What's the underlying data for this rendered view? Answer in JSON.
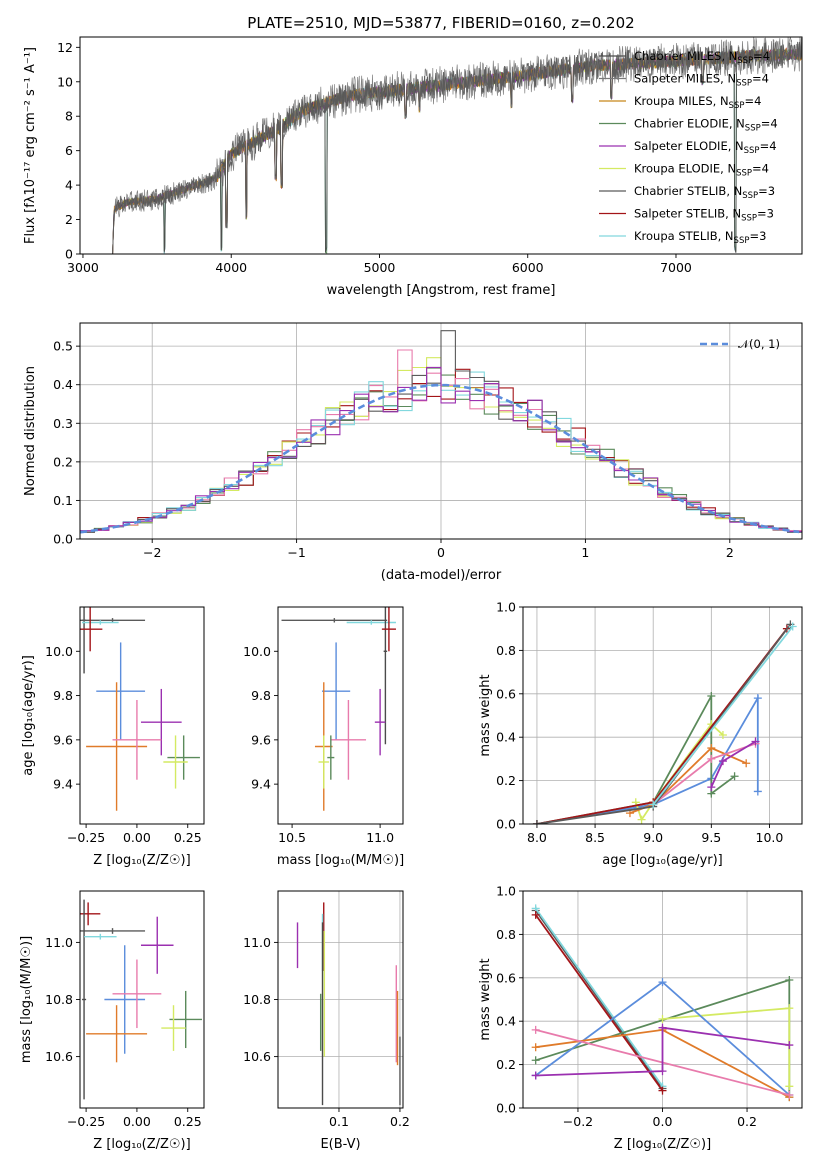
{
  "colors": {
    "Chabrier MILES": "#4b4b4b",
    "Salpeter MILES": "#7a7a7a",
    "Kroupa MILES": "#c8861a",
    "Chabrier ELODIE": "#5b8a5b",
    "Salpeter ELODIE": "#9b30b0",
    "Kroupa ELODIE": "#d4ea62",
    "Chabrier STELIB": "#5a5a5a",
    "Salpeter STELIB": "#a31418",
    "Kroupa STELIB": "#82d8de",
    "blue": "#5b8ddc",
    "orange": "#e07b2a",
    "pink": "#e87bac",
    "normal_curve": "#5b8ddc"
  },
  "chart_data": [
    {
      "id": "spectrum",
      "type": "line",
      "title": "PLATE=2510, MJD=53877, FIBERID=0160, z=0.202",
      "xlabel": "wavelength [Angstrom, rest frame]",
      "ylabel": "Flux [fλ10⁻¹⁷ erg cm⁻² s⁻¹ A⁻¹]",
      "xlim": [
        2980,
        7850
      ],
      "ylim": [
        0,
        12.6
      ],
      "xticks": [
        "3000",
        "4000",
        "5000",
        "6000",
        "7000"
      ],
      "yticks": [
        "0",
        "2",
        "4",
        "6",
        "8",
        "10",
        "12"
      ],
      "legend_location": "right",
      "legend": [
        {
          "name": "Chabrier MILES",
          "sub": "SSP",
          "n": "4"
        },
        {
          "name": "Salpeter MILES",
          "sub": "SSP",
          "n": "4"
        },
        {
          "name": "Kroupa MILES",
          "sub": "SSP",
          "n": "4"
        },
        {
          "name": "Chabrier ELODIE",
          "sub": "SSP",
          "n": "4"
        },
        {
          "name": "Salpeter ELODIE",
          "sub": "SSP",
          "n": "4"
        },
        {
          "name": "Kroupa ELODIE",
          "sub": "SSP",
          "n": "4"
        },
        {
          "name": "Chabrier STELIB",
          "sub": "SSP",
          "n": "3"
        },
        {
          "name": "Salpeter STELIB",
          "sub": "SSP",
          "n": "3"
        },
        {
          "name": "Kroupa STELIB",
          "sub": "SSP",
          "n": "3"
        }
      ],
      "continuum": [
        [
          3200,
          0
        ],
        [
          3210,
          2.6
        ],
        [
          3300,
          3.0
        ],
        [
          3500,
          3.2
        ],
        [
          3700,
          3.8
        ],
        [
          3900,
          4.4
        ],
        [
          4000,
          5.8
        ],
        [
          4300,
          7.2
        ],
        [
          4500,
          8.4
        ],
        [
          4800,
          9.2
        ],
        [
          5000,
          9.4
        ],
        [
          5300,
          9.7
        ],
        [
          5600,
          10.0
        ],
        [
          6000,
          10.4
        ],
        [
          6400,
          10.9
        ],
        [
          6800,
          11.1
        ],
        [
          7200,
          11.3
        ],
        [
          7500,
          11.5
        ],
        [
          7800,
          11.6
        ]
      ],
      "absorption_lines": [
        [
          3550,
          0.0
        ],
        [
          3934,
          0.0
        ],
        [
          3969,
          1.5
        ],
        [
          4102,
          2.0
        ],
        [
          4300,
          4.2
        ],
        [
          4340,
          3.8
        ],
        [
          4640,
          0.0
        ],
        [
          5175,
          7.8
        ],
        [
          5270,
          8.2
        ],
        [
          5890,
          8.4
        ],
        [
          6300,
          8.8
        ],
        [
          6563,
          9.0
        ],
        [
          7180,
          9.8
        ],
        [
          7400,
          0.0
        ]
      ]
    },
    {
      "id": "residuals",
      "type": "line",
      "xlabel": "(data-model)/error",
      "ylabel": "Normed distribution",
      "xlim": [
        -2.5,
        2.5
      ],
      "ylim": [
        0,
        0.56
      ],
      "xticks": [
        "−2",
        "−1",
        "0",
        "1",
        "2"
      ],
      "yticks": [
        "0.0",
        "0.1",
        "0.2",
        "0.3",
        "0.4",
        "0.5"
      ],
      "legend": [
        {
          "name": "𝒩(0, 1)"
        }
      ],
      "bin_width": 0.1,
      "histogram_deviations": [
        0.09,
        -0.04,
        0.13,
        0.07,
        -0.08,
        0.02,
        0.05,
        -0.11,
        0.06,
        -0.02
      ],
      "spikes": [
        [
          -0.25,
          0.49
        ],
        [
          0.05,
          0.54
        ],
        [
          -0.05,
          0.47
        ],
        [
          0.15,
          0.44
        ]
      ]
    },
    {
      "id": "age_vs_Z",
      "type": "scatter",
      "xlabel": "Z [log₁₀(Z/Z☉)]",
      "ylabel": "age  [log₁₀(age/yr)]",
      "xlim": [
        -0.28,
        0.33
      ],
      "ylim": [
        9.22,
        10.2
      ],
      "xticks": [
        "−0.25",
        "0.00",
        "0.25"
      ],
      "yticks": [
        "9.4",
        "9.6",
        "9.8",
        "10.0"
      ],
      "points": [
        {
          "s": "Chabrier MILES",
          "x": -0.26,
          "y": 10.14,
          "xe": 0.01,
          "ye": 0.24
        },
        {
          "s": "Chabrier STELIB",
          "x": -0.12,
          "y": 10.14,
          "xe": 0.16,
          "ye": 0.01
        },
        {
          "s": "Kroupa STELIB",
          "x": -0.18,
          "y": 10.13,
          "xe": 0.09,
          "ye": 0.01
        },
        {
          "s": "Salpeter STELIB",
          "x": -0.23,
          "y": 10.1,
          "xe": 0.06,
          "ye": 0.1
        },
        {
          "s": "blue",
          "x": -0.08,
          "y": 9.82,
          "xe": 0.12,
          "ye": 0.22
        },
        {
          "s": "Salpeter ELODIE",
          "x": 0.12,
          "y": 9.68,
          "xe": 0.1,
          "ye": 0.15
        },
        {
          "s": "orange",
          "x": -0.1,
          "y": 9.57,
          "xe": 0.15,
          "ye": 0.29
        },
        {
          "s": "pink",
          "x": 0.0,
          "y": 9.6,
          "xe": 0.12,
          "ye": 0.18
        },
        {
          "s": "Chabrier ELODIE",
          "x": 0.23,
          "y": 9.52,
          "xe": 0.08,
          "ye": 0.1
        },
        {
          "s": "Kroupa ELODIE",
          "x": 0.19,
          "y": 9.5,
          "xe": 0.06,
          "ye": 0.12
        }
      ]
    },
    {
      "id": "age_vs_mass",
      "type": "scatter",
      "xlabel": "mass [log₁₀(M/M☉)]",
      "xlim": [
        10.42,
        11.13
      ],
      "ylim": [
        9.22,
        10.2
      ],
      "xticks": [
        "10.5",
        "11.0"
      ],
      "yticks": [
        "9.4",
        "9.6",
        "9.8",
        "10.0"
      ],
      "points": [
        {
          "s": "Chabrier STELIB",
          "x": 10.74,
          "y": 10.14,
          "xe": 0.3,
          "ye": 0.01
        },
        {
          "s": "Kroupa STELIB",
          "x": 10.95,
          "y": 10.13,
          "xe": 0.14,
          "ye": 0.01
        },
        {
          "s": "Chabrier MILES",
          "x": 11.03,
          "y": 10.0,
          "xe": 0.01,
          "ye": 0.42
        },
        {
          "s": "Salpeter STELIB",
          "x": 11.05,
          "y": 10.1,
          "xe": 0.04,
          "ye": 0.1
        },
        {
          "s": "blue",
          "x": 10.75,
          "y": 9.82,
          "xe": 0.08,
          "ye": 0.22
        },
        {
          "s": "Salpeter ELODIE",
          "x": 11.0,
          "y": 9.68,
          "xe": 0.03,
          "ye": 0.15
        },
        {
          "s": "orange",
          "x": 10.68,
          "y": 9.57,
          "xe": 0.05,
          "ye": 0.29
        },
        {
          "s": "pink",
          "x": 10.82,
          "y": 9.6,
          "xe": 0.1,
          "ye": 0.18
        },
        {
          "s": "Kroupa ELODIE",
          "x": 10.68,
          "y": 9.5,
          "xe": 0.03,
          "ye": 0.12
        },
        {
          "s": "Chabrier ELODIE",
          "x": 10.72,
          "y": 9.52,
          "xe": 0.02,
          "ye": 0.1
        }
      ]
    },
    {
      "id": "weight_vs_age",
      "type": "line",
      "xlabel": "age  [log₁₀(age/yr)]",
      "ylabel": "mass weight",
      "xlim": [
        7.88,
        10.28
      ],
      "ylim": [
        0,
        1.0
      ],
      "xticks": [
        "8.0",
        "8.5",
        "9.0",
        "9.5",
        "10.0"
      ],
      "yticks": [
        "0.0",
        "0.2",
        "0.4",
        "0.6",
        "0.8",
        "1.0"
      ],
      "series": [
        {
          "s": "blue",
          "points": [
            [
              8.0,
              0.0
            ],
            [
              9.0,
              0.09
            ],
            [
              9.5,
              0.21
            ],
            [
              9.9,
              0.58
            ],
            [
              9.9,
              0.15
            ]
          ]
        },
        {
          "s": "Chabrier ELODIE",
          "points": [
            [
              8.0,
              0.0
            ],
            [
              9.0,
              0.1
            ],
            [
              9.5,
              0.59
            ],
            [
              9.5,
              0.14
            ],
            [
              9.7,
              0.22
            ]
          ]
        },
        {
          "s": "Kroupa ELODIE",
          "points": [
            [
              8.85,
              0.1
            ],
            [
              8.9,
              0.02
            ],
            [
              9.0,
              0.1
            ],
            [
              9.5,
              0.46
            ],
            [
              9.6,
              0.41
            ]
          ]
        },
        {
          "s": "orange",
          "points": [
            [
              8.8,
              0.05
            ],
            [
              9.0,
              0.09
            ],
            [
              9.5,
              0.35
            ],
            [
              9.8,
              0.28
            ]
          ]
        },
        {
          "s": "pink",
          "points": [
            [
              9.0,
              0.09
            ],
            [
              9.5,
              0.3
            ],
            [
              9.88,
              0.37
            ]
          ]
        },
        {
          "s": "Salpeter ELODIE",
          "points": [
            [
              9.5,
              0.17
            ],
            [
              9.6,
              0.29
            ],
            [
              9.88,
              0.38
            ]
          ]
        },
        {
          "s": "Salpeter STELIB",
          "points": [
            [
              8.0,
              0.0
            ],
            [
              9.0,
              0.1
            ],
            [
              10.15,
              0.9
            ]
          ]
        },
        {
          "s": "Chabrier STELIB",
          "points": [
            [
              8.0,
              0.0
            ],
            [
              9.0,
              0.08
            ],
            [
              10.18,
              0.92
            ]
          ]
        },
        {
          "s": "Kroupa STELIB",
          "points": [
            [
              9.0,
              0.09
            ],
            [
              10.2,
              0.91
            ]
          ]
        }
      ]
    },
    {
      "id": "mass_vs_Z",
      "type": "scatter",
      "xlabel": "Z [log₁₀(Z/Z☉)]",
      "ylabel": "mass [log₁₀(M/M☉)]",
      "xlim": [
        -0.28,
        0.33
      ],
      "ylim": [
        10.42,
        11.18
      ],
      "xticks": [
        "−0.25",
        "0.00",
        "0.25"
      ],
      "yticks": [
        "10.6",
        "10.8",
        "11.0"
      ],
      "points": [
        {
          "s": "Salpeter STELIB",
          "x": -0.24,
          "y": 11.1,
          "xe": 0.06,
          "ye": 0.04
        },
        {
          "s": "Chabrier STELIB",
          "x": -0.12,
          "y": 11.04,
          "xe": 0.16,
          "ye": 0.01
        },
        {
          "s": "Chabrier MILES",
          "x": -0.26,
          "y": 10.8,
          "xe": 0.01,
          "ye": 0.35
        },
        {
          "s": "Kroupa STELIB",
          "x": -0.18,
          "y": 11.02,
          "xe": 0.08,
          "ye": 0.01
        },
        {
          "s": "Salpeter ELODIE",
          "x": 0.1,
          "y": 10.99,
          "xe": 0.08,
          "ye": 0.1
        },
        {
          "s": "blue",
          "x": -0.06,
          "y": 10.8,
          "xe": 0.1,
          "ye": 0.19
        },
        {
          "s": "pink",
          "x": 0.0,
          "y": 10.82,
          "xe": 0.12,
          "ye": 0.12
        },
        {
          "s": "Chabrier ELODIE",
          "x": 0.24,
          "y": 10.73,
          "xe": 0.08,
          "ye": 0.1
        },
        {
          "s": "Kroupa ELODIE",
          "x": 0.18,
          "y": 10.7,
          "xe": 0.06,
          "ye": 0.08
        },
        {
          "s": "orange",
          "x": -0.1,
          "y": 10.68,
          "xe": 0.15,
          "ye": 0.1
        }
      ]
    },
    {
      "id": "mass_vs_EBV",
      "type": "scatter",
      "xlabel": "E(B-V)",
      "xlim": [
        0.0,
        0.205
      ],
      "ylim": [
        10.42,
        11.18
      ],
      "xticks": [
        "0.1",
        "0.2"
      ],
      "yticks": [
        "10.6",
        "10.8",
        "11.0"
      ],
      "points": [
        {
          "s": "Salpeter ELODIE",
          "x": 0.032,
          "y": 10.99,
          "xe": 0.0,
          "ye": 0.08
        },
        {
          "s": "Salpeter STELIB",
          "x": 0.075,
          "y": 11.02,
          "xe": 0.0,
          "ye": 0.12
        },
        {
          "s": "Kroupa STELIB",
          "x": 0.073,
          "y": 11.0,
          "xe": 0.0,
          "ye": 0.1
        },
        {
          "s": "Chabrier ELODIE",
          "x": 0.07,
          "y": 10.72,
          "xe": 0.0,
          "ye": 0.1
        },
        {
          "s": "Kroupa ELODIE",
          "x": 0.076,
          "y": 10.82,
          "xe": 0.0,
          "ye": 0.22
        },
        {
          "s": "Chabrier MILES",
          "x": 0.073,
          "y": 10.75,
          "xe": 0.0,
          "ye": 0.32
        },
        {
          "s": "pink",
          "x": 0.194,
          "y": 10.75,
          "xe": 0.0,
          "ye": 0.17
        },
        {
          "s": "orange",
          "x": 0.196,
          "y": 10.7,
          "xe": 0.0,
          "ye": 0.13
        },
        {
          "s": "Chabrier STELIB",
          "x": 0.2,
          "y": 10.55,
          "xe": 0.0,
          "ye": 0.12
        }
      ]
    },
    {
      "id": "weight_vs_Z",
      "type": "line",
      "xlabel": "Z [log₁₀(Z/Z☉)]",
      "ylabel": "mass weight",
      "xlim": [
        -0.33,
        0.33
      ],
      "ylim": [
        0,
        1.0
      ],
      "xticks": [
        "−0.2",
        "0.0",
        "0.2"
      ],
      "yticks": [
        "0.0",
        "0.2",
        "0.4",
        "0.6",
        "0.8",
        "1.0"
      ],
      "series": [
        {
          "s": "Chabrier STELIB",
          "points": [
            [
              -0.3,
              0.91
            ],
            [
              0.0,
              0.09
            ]
          ]
        },
        {
          "s": "Kroupa STELIB",
          "points": [
            [
              -0.3,
              0.92
            ],
            [
              0.0,
              0.1
            ]
          ]
        },
        {
          "s": "Salpeter STELIB",
          "points": [
            [
              -0.3,
              0.89
            ],
            [
              0.0,
              0.08
            ]
          ]
        },
        {
          "s": "Chabrier ELODIE",
          "points": [
            [
              -0.3,
              0.22
            ],
            [
              0.3,
              0.59
            ],
            [
              0.3,
              0.05
            ]
          ]
        },
        {
          "s": "Kroupa ELODIE",
          "points": [
            [
              0.0,
              0.41
            ],
            [
              0.3,
              0.46
            ],
            [
              0.3,
              0.1
            ]
          ]
        },
        {
          "s": "blue",
          "points": [
            [
              -0.3,
              0.15
            ],
            [
              0.0,
              0.58
            ],
            [
              0.3,
              0.06
            ]
          ]
        },
        {
          "s": "orange",
          "points": [
            [
              -0.3,
              0.28
            ],
            [
              0.0,
              0.36
            ],
            [
              0.3,
              0.05
            ]
          ]
        },
        {
          "s": "pink",
          "points": [
            [
              -0.3,
              0.36
            ],
            [
              0.3,
              0.06
            ]
          ]
        },
        {
          "s": "Salpeter ELODIE",
          "points": [
            [
              -0.3,
              0.15
            ],
            [
              0.0,
              0.17
            ],
            [
              0.0,
              0.37
            ],
            [
              0.3,
              0.29
            ]
          ]
        }
      ]
    }
  ]
}
